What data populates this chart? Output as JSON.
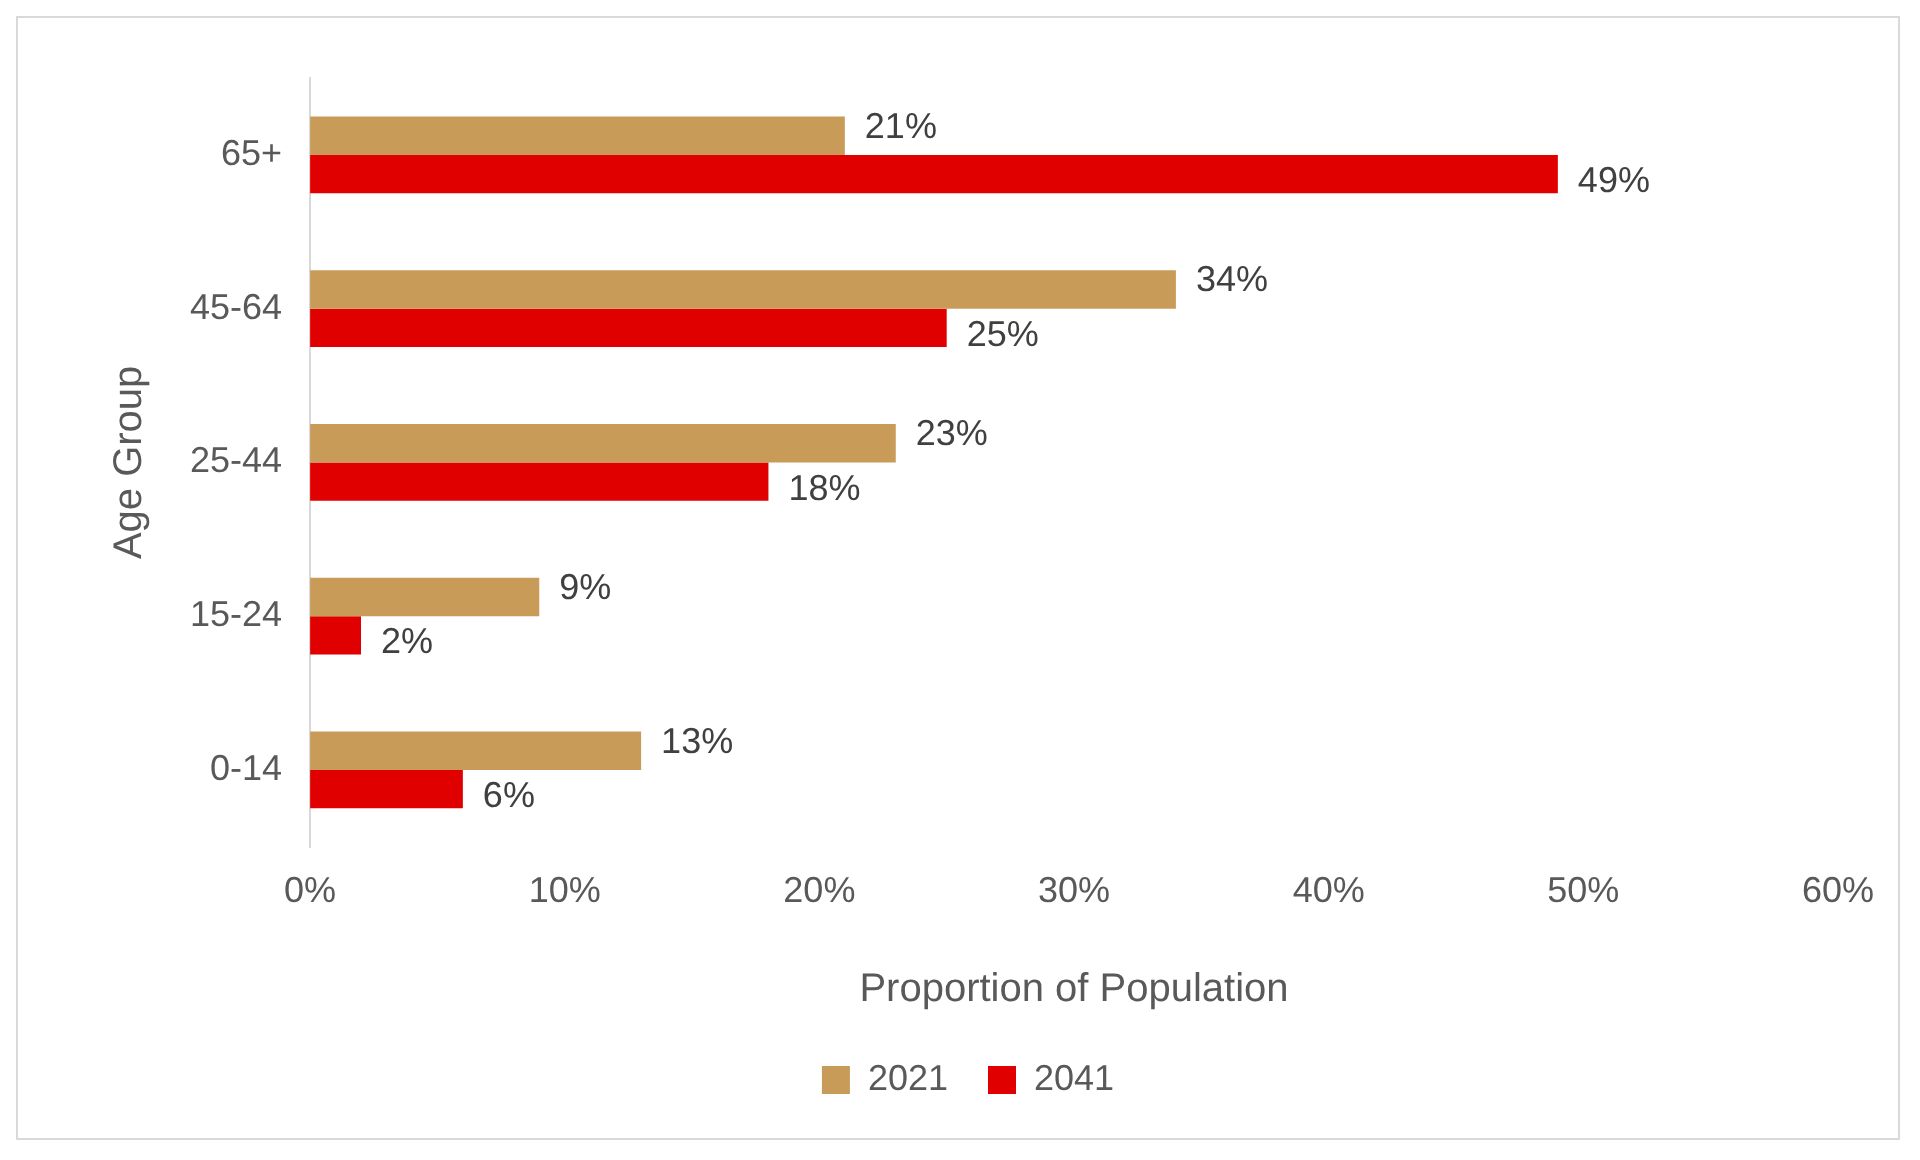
{
  "chart_data": {
    "type": "bar",
    "orientation": "horizontal",
    "xlabel": "Proportion of Population",
    "ylabel": "Age Group",
    "categories": [
      "65+",
      "45-64",
      "25-44",
      "15-24",
      "0-14"
    ],
    "series": [
      {
        "name": "2021",
        "color": "#c89b58",
        "values": [
          21,
          34,
          23,
          9,
          13
        ],
        "value_labels": [
          "21%",
          "34%",
          "23%",
          "9%",
          "13%"
        ]
      },
      {
        "name": "2041",
        "color": "#e00000",
        "values": [
          49,
          25,
          18,
          2,
          6
        ],
        "value_labels": [
          "49%",
          "25%",
          "18%",
          "2%",
          "6%"
        ]
      }
    ],
    "xlim": [
      0,
      60
    ],
    "xticks": [
      {
        "value": 0,
        "label": "0%"
      },
      {
        "value": 10,
        "label": "10%"
      },
      {
        "value": 20,
        "label": "20%"
      },
      {
        "value": 30,
        "label": "30%"
      },
      {
        "value": 40,
        "label": "40%"
      },
      {
        "value": 50,
        "label": "50%"
      },
      {
        "value": 60,
        "label": "60%"
      }
    ],
    "grid": false,
    "legend": "bottom"
  }
}
